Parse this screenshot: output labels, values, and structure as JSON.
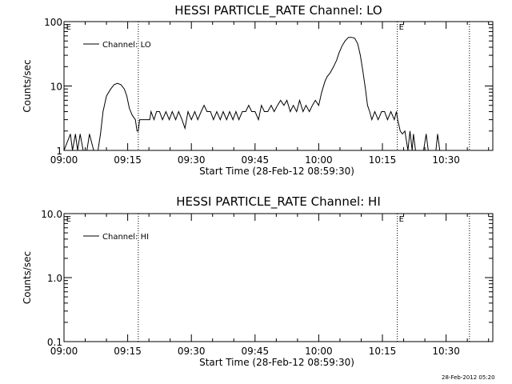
{
  "chart_data": [
    {
      "type": "line",
      "title": "HESSI PARTICLE_RATE Channel: LO",
      "xlabel": "Start Time (28-Feb-12 08:59:30)",
      "ylabel": "Counts/sec",
      "yscale": "log",
      "ylim": [
        1,
        100
      ],
      "xlim": [
        "09:00",
        "10:41"
      ],
      "x_ticks": [
        "09:00",
        "09:15",
        "09:30",
        "09:45",
        "10:00",
        "10:15",
        "10:30"
      ],
      "y_ticks": [
        "1",
        "10",
        "100"
      ],
      "legend": "top-left",
      "marker_lines_minutes": [
        17.5,
        78.5,
        95.5
      ],
      "event_flags": [
        {
          "text": "E",
          "minute": 0.3
        },
        {
          "text": "E",
          "minute": 78.7
        }
      ],
      "series": [
        {
          "name": "Channel: LO",
          "points": [
            [
              0,
              1
            ],
            [
              1.5,
              1.8
            ],
            [
              2,
              1
            ],
            [
              2.7,
              1.8
            ],
            [
              3.2,
              1
            ],
            [
              3.8,
              1.8
            ],
            [
              4.5,
              1
            ],
            [
              5.4,
              1
            ],
            [
              6,
              1.8
            ],
            [
              7,
              1
            ],
            [
              8,
              1
            ],
            [
              8.6,
              1.8
            ],
            [
              9.2,
              4
            ],
            [
              10,
              7
            ],
            [
              11,
              9
            ],
            [
              11.8,
              10.5
            ],
            [
              12.6,
              11
            ],
            [
              13.4,
              10.5
            ],
            [
              14.2,
              9
            ],
            [
              14.8,
              7
            ],
            [
              15.4,
              4.5
            ],
            [
              16.1,
              3.5
            ],
            [
              16.8,
              3
            ],
            [
              17.2,
              2
            ],
            [
              17.5,
              2
            ],
            [
              17.8,
              3
            ],
            [
              19,
              3
            ],
            [
              20.2,
              3
            ],
            [
              20.5,
              4
            ],
            [
              21.2,
              3
            ],
            [
              21.8,
              4
            ],
            [
              22.5,
              4
            ],
            [
              23.2,
              3
            ],
            [
              24,
              4
            ],
            [
              24.8,
              3
            ],
            [
              25.5,
              4
            ],
            [
              26.3,
              3
            ],
            [
              27,
              4
            ],
            [
              27.8,
              3
            ],
            [
              28.5,
              2.2
            ],
            [
              29.2,
              4
            ],
            [
              30,
              3
            ],
            [
              30.8,
              4
            ],
            [
              31.5,
              3
            ],
            [
              32.3,
              4
            ],
            [
              33,
              5
            ],
            [
              33.7,
              4
            ],
            [
              34.5,
              4
            ],
            [
              35.2,
              3
            ],
            [
              36,
              4
            ],
            [
              36.8,
              3
            ],
            [
              37.5,
              4
            ],
            [
              38.3,
              3
            ],
            [
              39,
              4
            ],
            [
              39.8,
              3
            ],
            [
              40.5,
              4
            ],
            [
              41.2,
              3
            ],
            [
              42,
              4
            ],
            [
              42.8,
              4
            ],
            [
              43.5,
              5
            ],
            [
              44.2,
              4
            ],
            [
              45,
              4
            ],
            [
              45.8,
              3
            ],
            [
              46.5,
              5
            ],
            [
              47.2,
              4
            ],
            [
              48,
              4
            ],
            [
              48.8,
              5
            ],
            [
              49.5,
              4
            ],
            [
              50.3,
              5
            ],
            [
              51,
              6
            ],
            [
              51.8,
              5
            ],
            [
              52.5,
              6
            ],
            [
              53.3,
              4
            ],
            [
              54,
              5
            ],
            [
              54.8,
              4
            ],
            [
              55.5,
              6
            ],
            [
              56.3,
              4
            ],
            [
              57,
              5
            ],
            [
              57.8,
              4
            ],
            [
              58.5,
              5
            ],
            [
              59.2,
              6
            ],
            [
              60,
              5
            ],
            [
              60.7,
              8
            ],
            [
              61.5,
              12
            ],
            [
              62,
              14
            ],
            [
              62.7,
              16
            ],
            [
              63.5,
              20
            ],
            [
              64.2,
              25
            ],
            [
              64.8,
              33
            ],
            [
              65.5,
              42
            ],
            [
              66.2,
              50
            ],
            [
              67,
              57
            ],
            [
              67.8,
              57
            ],
            [
              68.5,
              55
            ],
            [
              69.2,
              45
            ],
            [
              69.8,
              30
            ],
            [
              70.4,
              17
            ],
            [
              71,
              9
            ],
            [
              71.5,
              5
            ],
            [
              72,
              4
            ],
            [
              72.5,
              3
            ],
            [
              73.2,
              4
            ],
            [
              74,
              3
            ],
            [
              74.8,
              4
            ],
            [
              75.5,
              4
            ],
            [
              76.2,
              3
            ],
            [
              77,
              4
            ],
            [
              77.8,
              3
            ],
            [
              78.3,
              4
            ],
            [
              78.6,
              3
            ],
            [
              79.2,
              2
            ],
            [
              79.7,
              1.8
            ],
            [
              80.3,
              2
            ],
            [
              81,
              1
            ],
            [
              81.5,
              2
            ],
            [
              82,
              1
            ],
            [
              82.3,
              1.8
            ],
            [
              82.8,
              1
            ],
            [
              83.4,
              1
            ],
            [
              84,
              1
            ],
            [
              84.7,
              1
            ],
            [
              85.3,
              1.8
            ],
            [
              85.8,
              1
            ],
            [
              86.2,
              1
            ],
            [
              87.6,
              1
            ],
            [
              88,
              1.8
            ],
            [
              88.5,
              1
            ],
            [
              89,
              1
            ]
          ]
        }
      ]
    },
    {
      "type": "line",
      "title": "HESSI PARTICLE_RATE Channel: HI",
      "xlabel": "Start Time (28-Feb-12 08:59:30)",
      "ylabel": "Counts/sec",
      "yscale": "log",
      "ylim": [
        0.1,
        10
      ],
      "xlim": [
        "09:00",
        "10:41"
      ],
      "x_ticks": [
        "09:00",
        "09:15",
        "09:30",
        "09:45",
        "10:00",
        "10:15",
        "10:30"
      ],
      "y_ticks": [
        "0.1",
        "1.0",
        "10.0"
      ],
      "legend": "top-left",
      "marker_lines_minutes": [
        17.5,
        78.5,
        95.5
      ],
      "event_flags": [
        {
          "text": "E",
          "minute": 0.3
        },
        {
          "text": "E",
          "minute": 78.7
        }
      ],
      "series": [
        {
          "name": "Channel: HI",
          "points": []
        }
      ]
    }
  ],
  "footer": {
    "timestamp": "28-Feb-2012 05:20"
  }
}
